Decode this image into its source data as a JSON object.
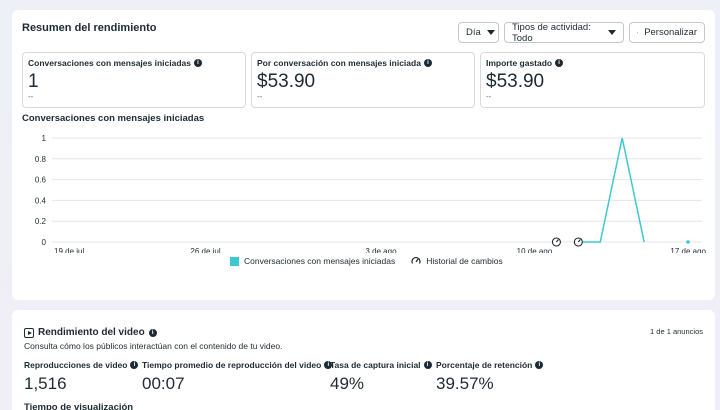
{
  "summary": {
    "title": "Resumen del rendimiento",
    "controls": {
      "day_label": "Día",
      "activity_label": "Tipos de actividad: Todo",
      "customize_label": "Personalizar"
    },
    "metrics": [
      {
        "label": "Conversaciones con mensajes iniciadas",
        "value": "1",
        "sub": "--"
      },
      {
        "label": "Por conversación con mensajes iniciada",
        "value": "$53.90",
        "sub": "--"
      },
      {
        "label": "Importe gastado",
        "value": "$53.90",
        "sub": "--"
      }
    ]
  },
  "chart_title": "Conversaciones con mensajes iniciadas",
  "chart_data": {
    "type": "line",
    "y_ticks": [
      "1",
      "0.8",
      "0.6",
      "0.4",
      "0.2",
      "0"
    ],
    "ylim": [
      0,
      1
    ],
    "x_ticks": [
      "19 de jul",
      "26 de jul",
      "3 de ago",
      "10 de ago",
      "17 de ago"
    ],
    "x": [
      "19 de jul",
      "20 de jul",
      "21 de jul",
      "22 de jul",
      "23 de jul",
      "24 de jul",
      "25 de jul",
      "26 de jul",
      "27 de jul",
      "28 de jul",
      "29 de jul",
      "30 de jul",
      "31 de jul",
      "1 de ago",
      "2 de ago",
      "3 de ago",
      "4 de ago",
      "5 de ago",
      "6 de ago",
      "7 de ago",
      "8 de ago",
      "9 de ago",
      "10 de ago",
      "11 de ago",
      "12 de ago",
      "13 de ago",
      "14 de ago",
      "15 de ago",
      "16 de ago",
      "17 de ago"
    ],
    "series": [
      {
        "name": "Conversaciones con mensajes iniciadas",
        "color": "#3bc9cf",
        "values": [
          null,
          null,
          null,
          null,
          null,
          null,
          null,
          null,
          null,
          null,
          null,
          null,
          null,
          null,
          null,
          null,
          null,
          null,
          null,
          null,
          null,
          null,
          null,
          null,
          0,
          0,
          1,
          0,
          null,
          0
        ]
      }
    ],
    "change_markers": [
      "11 de ago",
      "12 de ago"
    ],
    "grid": true,
    "legend": {
      "position": "bottom",
      "items": [
        "Conversaciones con mensajes iniciadas",
        "Historial de cambios"
      ]
    }
  },
  "video": {
    "title": "Rendimiento del video",
    "subtitle": "Consulta cómo los públicos interactúan con el contenido de tu video.",
    "ad_count": "1 de 1 anuncios",
    "metrics": [
      {
        "label": "Reproducciones de video",
        "value": "1,516"
      },
      {
        "label": "Tiempo promedio de reproducción del video",
        "value": "00:07"
      },
      {
        "label": "Tasa de captura inicial",
        "value": "49%"
      },
      {
        "label": "Porcentaje de retención",
        "value": "39.57%"
      }
    ],
    "bottom_label": "Tiempo de visualización"
  }
}
